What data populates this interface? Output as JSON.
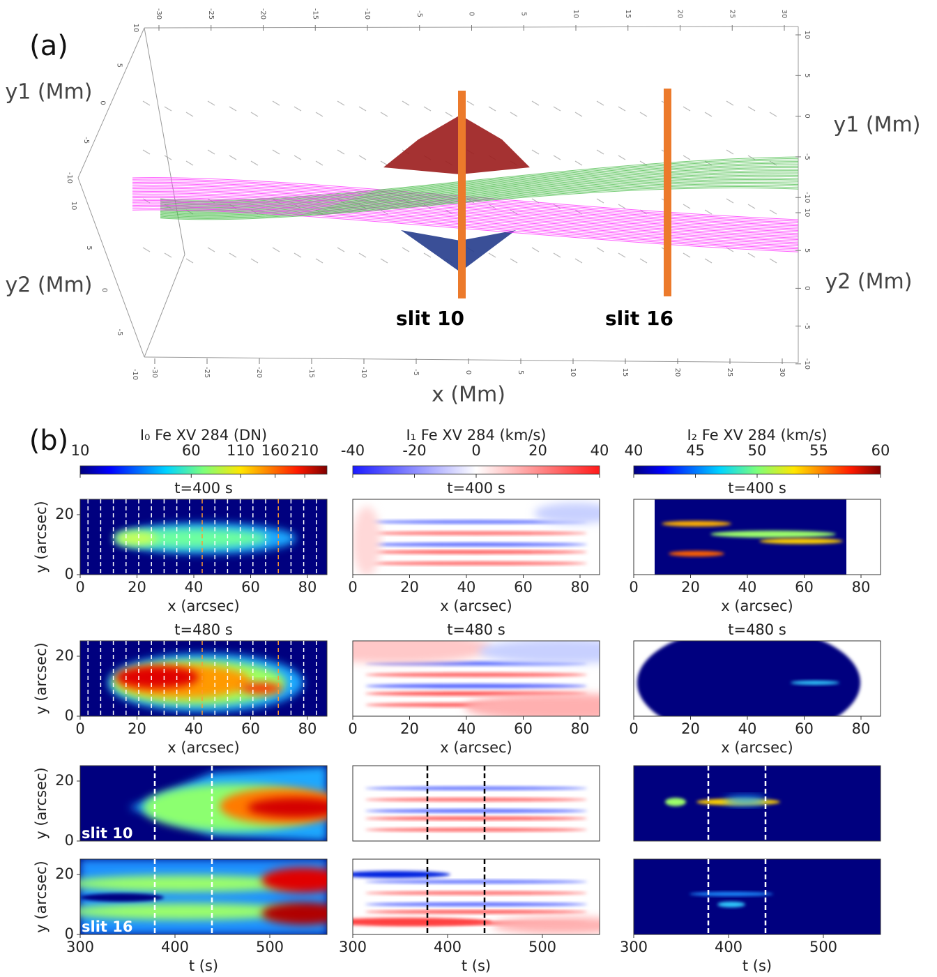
{
  "panel_a": {
    "label": "(a)",
    "y1_label": "y1 (Mm)",
    "y2_label": "y2 (Mm)",
    "x_label": "x (Mm)",
    "slits": [
      "slit 10",
      "slit 16"
    ],
    "x_ticks": [
      -30,
      -25,
      -20,
      -15,
      -10,
      -5,
      0,
      5,
      10,
      15,
      20,
      25,
      30
    ],
    "y_ticks": [
      10,
      5,
      0,
      -5,
      -10
    ]
  },
  "panel_b": {
    "label": "(b)",
    "colorbars": [
      {
        "title": "I₀ Fe XV 284 (DN)",
        "ticks": [
          10,
          60,
          110,
          160,
          210
        ]
      },
      {
        "title": "I₁ Fe XV 284 (km/s)",
        "ticks": [
          -40,
          -20,
          0,
          20,
          40
        ]
      },
      {
        "title": "I₂ Fe XV 284 (km/s)",
        "ticks": [
          40,
          45,
          50,
          55,
          60
        ]
      }
    ],
    "row_titles": [
      "t=400 s",
      "t=480 s"
    ],
    "x_label": "x (arcsec)",
    "y_label": "y (arcsec)",
    "t_label": "t (s)",
    "x_ticks": [
      0,
      20,
      40,
      60,
      80
    ],
    "y_ticks": [
      0,
      20
    ],
    "t_ticks": [
      300,
      400,
      500
    ],
    "slit_labels": [
      "slit 10",
      "slit 16"
    ]
  }
}
